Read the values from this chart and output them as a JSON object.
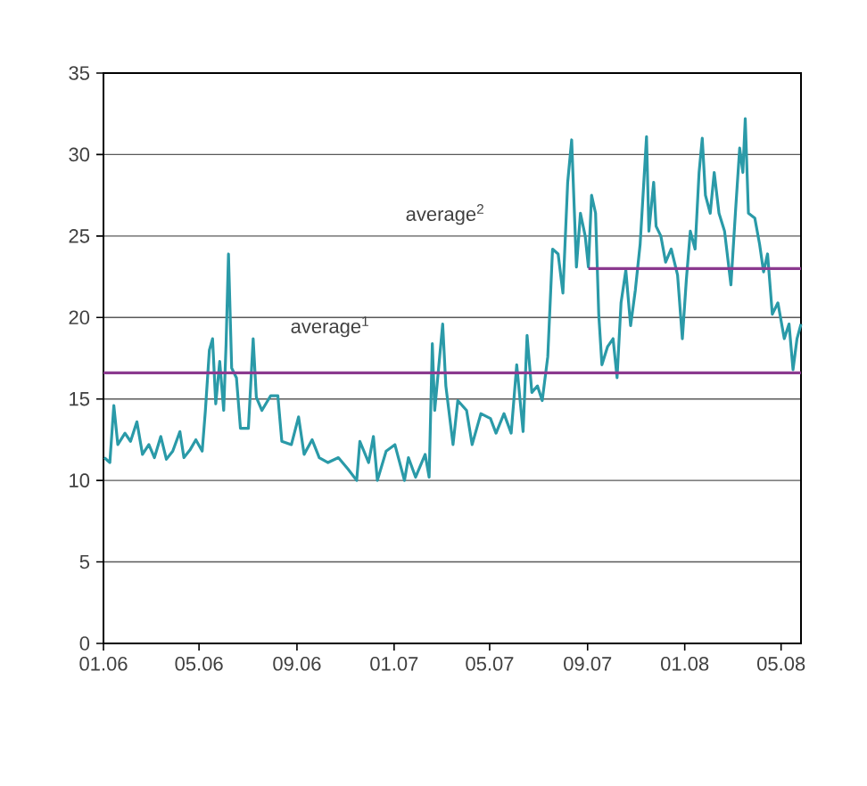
{
  "chart_data": {
    "type": "line",
    "x": [
      "2006-01-02",
      "2006-01-09",
      "2006-01-14",
      "2006-01-19",
      "2006-01-28",
      "2006-02-04",
      "2006-02-12",
      "2006-02-19",
      "2006-02-27",
      "2006-03-06",
      "2006-03-14",
      "2006-03-21",
      "2006-03-29",
      "2006-04-07",
      "2006-04-12",
      "2006-04-20",
      "2006-04-27",
      "2006-05-05",
      "2006-05-09",
      "2006-05-14",
      "2006-05-18",
      "2006-05-22",
      "2006-05-27",
      "2006-06-01",
      "2006-06-04",
      "2006-06-07",
      "2006-06-11",
      "2006-06-17",
      "2006-06-22",
      "2006-07-02",
      "2006-07-08",
      "2006-07-12",
      "2006-07-19",
      "2006-07-30",
      "2006-08-08",
      "2006-08-13",
      "2006-08-25",
      "2006-09-03",
      "2006-09-10",
      "2006-09-20",
      "2006-09-29",
      "2006-10-10",
      "2006-10-23",
      "2006-11-04",
      "2006-11-15",
      "2006-11-19",
      "2006-11-30",
      "2006-12-06",
      "2006-12-11",
      "2006-12-22",
      "2007-01-02",
      "2007-01-14",
      "2007-01-19",
      "2007-01-28",
      "2007-02-09",
      "2007-02-14",
      "2007-02-18",
      "2007-02-21",
      "2007-03-03",
      "2007-03-07",
      "2007-03-16",
      "2007-03-22",
      "2007-04-02",
      "2007-04-09",
      "2007-04-20",
      "2007-05-02",
      "2007-05-09",
      "2007-05-19",
      "2007-05-28",
      "2007-06-04",
      "2007-06-12",
      "2007-06-17",
      "2007-06-23",
      "2007-06-30",
      "2007-07-06",
      "2007-07-13",
      "2007-07-19",
      "2007-07-26",
      "2007-08-01",
      "2007-08-07",
      "2007-08-12",
      "2007-08-18",
      "2007-08-23",
      "2007-08-29",
      "2007-09-02",
      "2007-09-06",
      "2007-09-11",
      "2007-09-15",
      "2007-09-19",
      "2007-09-26",
      "2007-10-03",
      "2007-10-08",
      "2007-10-13",
      "2007-10-19",
      "2007-10-25",
      "2007-10-31",
      "2007-11-06",
      "2007-11-10",
      "2007-11-14",
      "2007-11-17",
      "2007-11-23",
      "2007-11-26",
      "2007-12-02",
      "2007-12-08",
      "2007-12-15",
      "2007-12-23",
      "2007-12-29",
      "2008-01-03",
      "2008-01-08",
      "2008-01-14",
      "2008-01-19",
      "2008-01-23",
      "2008-01-27",
      "2008-02-02",
      "2008-02-07",
      "2008-02-13",
      "2008-02-20",
      "2008-02-28",
      "2008-03-05",
      "2008-03-10",
      "2008-03-14",
      "2008-03-17",
      "2008-03-21",
      "2008-03-29",
      "2008-04-04",
      "2008-04-09",
      "2008-04-14",
      "2008-04-20",
      "2008-04-27",
      "2008-05-05",
      "2008-05-11",
      "2008-05-16",
      "2008-05-21",
      "2008-05-26"
    ],
    "series": [
      {
        "color": "#2a9aa8",
        "values": [
          11.4,
          11.1,
          14.6,
          12.2,
          12.9,
          12.4,
          13.6,
          11.6,
          12.2,
          11.4,
          12.7,
          11.3,
          11.8,
          13.0,
          11.4,
          11.9,
          12.5,
          11.8,
          14.3,
          18.0,
          18.7,
          14.7,
          17.3,
          14.3,
          18.4,
          23.9,
          16.9,
          16.3,
          13.2,
          13.2,
          18.7,
          15.1,
          14.3,
          15.2,
          15.2,
          12.4,
          12.2,
          13.9,
          11.6,
          12.5,
          11.4,
          11.1,
          11.4,
          10.7,
          10.0,
          12.4,
          11.1,
          12.7,
          10.0,
          11.8,
          12.2,
          10.0,
          11.4,
          10.2,
          11.6,
          10.2,
          18.4,
          14.3,
          19.6,
          15.8,
          12.2,
          14.9,
          14.3,
          12.2,
          14.1,
          13.8,
          12.9,
          14.1,
          12.9,
          17.1,
          13.0,
          18.9,
          15.4,
          15.8,
          14.9,
          17.6,
          24.2,
          23.9,
          21.5,
          28.3,
          30.9,
          23.1,
          26.4,
          25.0,
          23.1,
          27.5,
          26.4,
          20.2,
          17.1,
          18.2,
          18.7,
          16.3,
          20.9,
          22.9,
          19.5,
          21.7,
          24.5,
          27.8,
          31.1,
          25.3,
          28.3,
          25.6,
          25.0,
          23.4,
          24.2,
          22.6,
          18.7,
          22.3,
          25.3,
          24.2,
          28.9,
          31.0,
          27.5,
          26.4,
          28.9,
          26.4,
          25.3,
          22.0,
          26.7,
          30.4,
          28.9,
          32.2,
          26.4,
          26.1,
          24.5,
          22.8,
          23.9,
          20.2,
          20.9,
          18.7,
          19.6,
          16.8,
          18.7,
          19.6
        ]
      },
      {
        "color": "#8b3a8f",
        "x": [
          "2006-01-01",
          "2008-05-26"
        ],
        "values": [
          16.6,
          16.6
        ]
      },
      {
        "color": "#8b3a8f",
        "x": [
          "2007-09-02",
          "2008-05-26"
        ],
        "values": [
          23.0,
          23.0
        ]
      }
    ],
    "annotations": [
      "average$^{1}$",
      "average$^{2}$"
    ],
    "xlim": [
      "2006-01-01",
      "2008-05-26"
    ],
    "xticks": [
      {
        "value": "2006-01-01",
        "label": "01.06"
      },
      {
        "value": "2006-05-01",
        "label": "05.06"
      },
      {
        "value": "2006-09-01",
        "label": "09.06"
      },
      {
        "value": "2007-01-01",
        "label": "01.07"
      },
      {
        "value": "2007-05-01",
        "label": "05.07"
      },
      {
        "value": "2007-09-01",
        "label": "09.07"
      },
      {
        "value": "2008-01-01",
        "label": "01.08"
      },
      {
        "value": "2008-05-01",
        "label": "05.08"
      }
    ],
    "ylim": [
      0,
      35
    ],
    "yticks": [
      0,
      5,
      10,
      15,
      20,
      25,
      30,
      35
    ],
    "grid": "y",
    "marker": "none",
    "line_style": "solid"
  }
}
